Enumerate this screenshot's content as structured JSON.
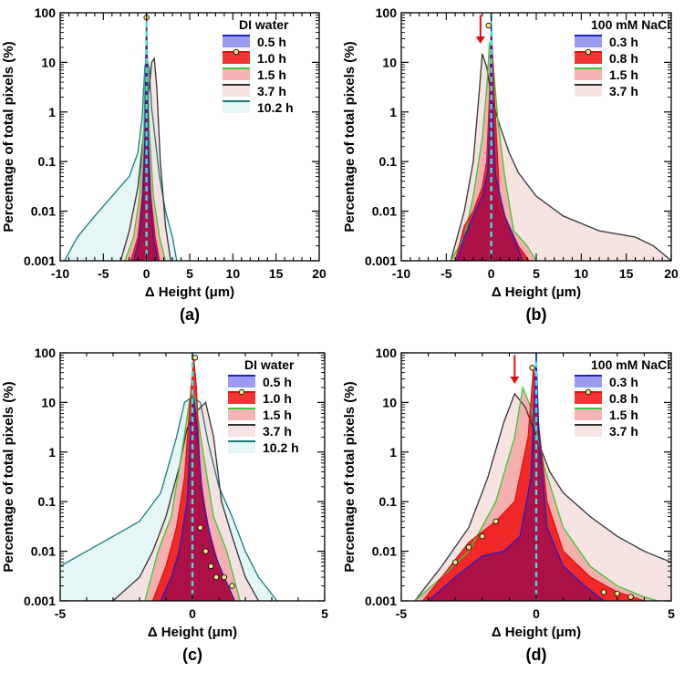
{
  "figure_colors": {
    "s_blue": "#2020c8",
    "s_blue_fill": "#8a8af0",
    "s_red": "#e01010",
    "s_red_fill": "#ee1111",
    "s_green": "#33cc33",
    "s_green_fill": "#f4a6a6",
    "s_black": "#333333",
    "s_black_fill": "#f7dede",
    "s_teal": "#1a7a7a",
    "s_teal_fill": "#dff4f4",
    "overlap_fill": "#a8104a",
    "zero_line": "#44dddd",
    "arrow": "#e01010"
  },
  "chart_data": [
    {
      "panel": "a",
      "type": "area",
      "panel_label": "(a)",
      "xlabel": "Δ Height (μm)",
      "ylabel": "Percentage of total pixels (%)",
      "xlim": [
        -10,
        20
      ],
      "xticks": [
        "-10",
        "-5",
        "0",
        "5",
        "10",
        "15",
        "20"
      ],
      "yscale": "log",
      "ylim": [
        0.001,
        100
      ],
      "yticks": [
        "0.001",
        "0.01",
        "0.1",
        "1",
        "10",
        "100"
      ],
      "legend_title": "DI water",
      "series": [
        {
          "name": "10.2 h",
          "key": "s_teal",
          "x": [
            -9.5,
            -8,
            -6,
            -4,
            -2,
            -1,
            -0.5,
            -0.2,
            0,
            0.3,
            0.6,
            1,
            1.5,
            2.2,
            3,
            3.5
          ],
          "y": [
            0.001,
            0.003,
            0.008,
            0.02,
            0.05,
            0.15,
            0.8,
            8,
            12,
            8,
            1.2,
            0.3,
            0.05,
            0.01,
            0.003,
            0.001
          ]
        },
        {
          "name": "3.7 h",
          "key": "s_black",
          "x": [
            -3,
            -2,
            -1,
            -0.5,
            0,
            0.3,
            0.6,
            0.9,
            1.2,
            1.6,
            2.2,
            2.8
          ],
          "y": [
            0.001,
            0.004,
            0.03,
            0.2,
            1.5,
            3,
            10,
            12,
            3,
            0.1,
            0.005,
            0.001
          ]
        },
        {
          "name": "1.5 h",
          "key": "s_green",
          "x": [
            -2.5,
            -1.5,
            -0.8,
            -0.3,
            0,
            0.3,
            0.8,
            1.5,
            2.2
          ],
          "y": [
            0.001,
            0.003,
            0.02,
            0.5,
            60,
            0.5,
            0.02,
            0.003,
            0.001
          ]
        },
        {
          "name": "1.0 h",
          "key": "s_red",
          "x": [
            -1.8,
            -1,
            -0.5,
            -0.2,
            0,
            0.2,
            0.5,
            1,
            1.5
          ],
          "y": [
            0.001,
            0.003,
            0.02,
            0.3,
            80,
            0.3,
            0.02,
            0.003,
            0.001
          ]
        },
        {
          "name": "0.5 h",
          "key": "s_blue",
          "x": [
            -1.5,
            -0.8,
            -0.4,
            -0.15,
            0,
            0.15,
            0.4,
            0.8,
            1.3
          ],
          "y": [
            0.001,
            0.003,
            0.02,
            0.4,
            50,
            0.4,
            0.02,
            0.003,
            0.001
          ]
        }
      ],
      "markers": [
        {
          "x": 0,
          "y": 80
        }
      ],
      "arrow": null
    },
    {
      "panel": "b",
      "type": "area",
      "panel_label": "(b)",
      "xlabel": "Δ Height (μm)",
      "ylabel": "Percentage of total pixels (%)",
      "xlim": [
        -10,
        20
      ],
      "xticks": [
        "-10",
        "-5",
        "0",
        "5",
        "10",
        "15",
        "20"
      ],
      "yscale": "log",
      "ylim": [
        0.001,
        100
      ],
      "yticks": [
        "0.001",
        "0.01",
        "0.1",
        "1",
        "10",
        "100"
      ],
      "legend_title": "100 mM NaCl",
      "series": [
        {
          "name": "3.7 h",
          "key": "s_black",
          "x": [
            -4.5,
            -3,
            -2,
            -1.3,
            -1,
            -0.5,
            0,
            1,
            2,
            3,
            5,
            8,
            12,
            16,
            18,
            19.5,
            20
          ],
          "y": [
            0.001,
            0.01,
            0.1,
            3,
            15,
            8,
            2,
            0.5,
            0.15,
            0.06,
            0.02,
            0.008,
            0.004,
            0.003,
            0.002,
            0.0012,
            0.001
          ]
        },
        {
          "name": "1.5 h",
          "key": "s_green",
          "x": [
            -4.5,
            -3,
            -2,
            -1,
            -0.5,
            -0.2,
            0.2,
            0.8,
            1.5,
            2.5,
            4,
            5
          ],
          "y": [
            0.001,
            0.003,
            0.02,
            0.3,
            3,
            25,
            10,
            0.5,
            0.05,
            0.004,
            0.002,
            0.001
          ]
        },
        {
          "name": "0.8 h",
          "key": "s_red",
          "x": [
            -4,
            -3,
            -2,
            -1,
            -0.5,
            -0.2,
            0,
            0.3,
            1,
            2,
            3,
            4.2
          ],
          "y": [
            0.001,
            0.005,
            0.01,
            0.03,
            0.1,
            2,
            55,
            3,
            0.01,
            0.005,
            0.002,
            0.001
          ]
        },
        {
          "name": "0.3 h",
          "key": "s_blue",
          "x": [
            -3.8,
            -3,
            -2,
            -1,
            -0.4,
            -0.1,
            0,
            0.1,
            0.5,
            1.5,
            2.5,
            3.5
          ],
          "y": [
            0.001,
            0.003,
            0.008,
            0.02,
            0.06,
            1,
            80,
            2,
            0.05,
            0.008,
            0.003,
            0.001
          ]
        }
      ],
      "markers": [
        {
          "x": -0.3,
          "y": 55
        }
      ],
      "arrow": {
        "x": -1.2,
        "y_top": 50,
        "y_bottom": 20
      }
    },
    {
      "panel": "c",
      "type": "area",
      "panel_label": "(c)",
      "xlabel": "Δ Height (μm)",
      "ylabel": "Percentage of total pixels (%)",
      "xlim": [
        -5,
        5
      ],
      "xticks": [
        "-5",
        "0",
        "5"
      ],
      "yscale": "log",
      "ylim": [
        0.001,
        100
      ],
      "yticks": [
        "0.001",
        "0.01",
        "0.1",
        "1",
        "10",
        "100"
      ],
      "legend_title": "DI water",
      "series": [
        {
          "name": "10.2 h",
          "key": "s_teal",
          "x": [
            -5,
            -4,
            -3,
            -2,
            -1.2,
            -0.6,
            -0.3,
            0,
            0.3,
            0.6,
            1,
            1.5,
            2,
            2.5,
            3.2
          ],
          "y": [
            0.005,
            0.01,
            0.02,
            0.04,
            0.15,
            2,
            10,
            13,
            10,
            1.5,
            0.2,
            0.05,
            0.01,
            0.003,
            0.001
          ]
        },
        {
          "name": "3.7 h",
          "key": "s_black",
          "x": [
            -5,
            -3,
            -2,
            -1.5,
            -1,
            -0.5,
            -0.2,
            0.2,
            0.5,
            0.8,
            1.1,
            1.5,
            2,
            2.5
          ],
          "y": [
            0.001,
            0.001,
            0.003,
            0.01,
            0.05,
            0.5,
            3,
            7,
            10,
            2,
            0.1,
            0.02,
            0.003,
            0.001
          ]
        },
        {
          "name": "1.5 h",
          "key": "s_green",
          "x": [
            -1.8,
            -1.3,
            -0.8,
            -0.4,
            -0.1,
            0,
            0.1,
            0.4,
            0.8,
            1.3,
            1.8
          ],
          "y": [
            0.001,
            0.01,
            0.05,
            1,
            12,
            15,
            12,
            1,
            0.05,
            0.01,
            0.001
          ]
        },
        {
          "name": "1.0 h",
          "key": "s_red",
          "x": [
            -1.5,
            -1,
            -0.6,
            -0.3,
            -0.05,
            0.05,
            0.15,
            0.3,
            0.6,
            1,
            1.5
          ],
          "y": [
            0.001,
            0.005,
            0.03,
            0.3,
            20,
            80,
            20,
            0.3,
            0.03,
            0.005,
            0.001
          ]
        },
        {
          "name": "0.5 h",
          "key": "s_blue",
          "x": [
            -1.2,
            -0.8,
            -0.5,
            -0.2,
            -0.05,
            0.05,
            0.15,
            0.4,
            0.8,
            1.2,
            1.6
          ],
          "y": [
            0.001,
            0.003,
            0.01,
            0.1,
            4,
            12,
            4,
            0.1,
            0.01,
            0.003,
            0.001
          ]
        }
      ],
      "markers": [
        {
          "x": 0.1,
          "y": 80
        },
        {
          "x": 0.3,
          "y": 0.03
        },
        {
          "x": 0.5,
          "y": 0.01
        },
        {
          "x": 0.7,
          "y": 0.005
        },
        {
          "x": 0.9,
          "y": 0.003
        },
        {
          "x": 1.2,
          "y": 0.003
        },
        {
          "x": 1.5,
          "y": 0.002
        }
      ],
      "arrow": null
    },
    {
      "panel": "d",
      "type": "area",
      "panel_label": "(d)",
      "xlabel": "Δ Height (μm)",
      "ylabel": "Percentage of total pixels (%)",
      "xlim": [
        -5,
        5
      ],
      "xticks": [
        "-5",
        "0",
        "5"
      ],
      "yscale": "log",
      "ylim": [
        0.001,
        100
      ],
      "yticks": [
        "0.001",
        "0.01",
        "0.1",
        "1",
        "10",
        "100"
      ],
      "legend_title": "100 mM NaCl",
      "series": [
        {
          "name": "3.7 h",
          "key": "s_black",
          "x": [
            -4.5,
            -3.5,
            -2.5,
            -1.8,
            -1.2,
            -0.8,
            -0.4,
            0,
            0.5,
            1,
            2,
            3,
            4,
            5
          ],
          "y": [
            0.001,
            0.005,
            0.03,
            0.3,
            4,
            15,
            8,
            2,
            0.4,
            0.15,
            0.05,
            0.02,
            0.01,
            0.006
          ]
        },
        {
          "name": "1.5 h",
          "key": "s_green",
          "x": [
            -4.5,
            -3.5,
            -2.5,
            -1.5,
            -0.8,
            -0.5,
            -0.2,
            0.3,
            1,
            2,
            3,
            4,
            4.5
          ],
          "y": [
            0.001,
            0.003,
            0.01,
            0.1,
            2,
            20,
            8,
            0.5,
            0.03,
            0.005,
            0.002,
            0.0012,
            0.001
          ]
        },
        {
          "name": "0.8 h",
          "key": "s_red",
          "x": [
            -4.2,
            -3.5,
            -2.5,
            -1.5,
            -0.8,
            -0.3,
            -0.1,
            0.1,
            0.4,
            1,
            2,
            3,
            4
          ],
          "y": [
            0.001,
            0.003,
            0.015,
            0.04,
            0.1,
            2,
            50,
            3,
            0.1,
            0.01,
            0.003,
            0.0015,
            0.001
          ]
        },
        {
          "name": "0.3 h",
          "key": "s_blue",
          "x": [
            -4,
            -3,
            -2,
            -1.2,
            -0.6,
            -0.2,
            0,
            0.1,
            0.4,
            1,
            1.8,
            2.5
          ],
          "y": [
            0.001,
            0.003,
            0.008,
            0.01,
            0.02,
            0.3,
            80,
            2,
            0.03,
            0.005,
            0.002,
            0.001
          ]
        }
      ],
      "markers": [
        {
          "x": -0.15,
          "y": 50
        },
        {
          "x": -3.0,
          "y": 0.006
        },
        {
          "x": -2.5,
          "y": 0.012
        },
        {
          "x": -2.0,
          "y": 0.02
        },
        {
          "x": -1.5,
          "y": 0.04
        },
        {
          "x": 2.5,
          "y": 0.0015
        },
        {
          "x": 3.0,
          "y": 0.0014
        },
        {
          "x": 3.5,
          "y": 0.0012
        }
      ],
      "arrow": {
        "x": -0.8,
        "y_top": 50,
        "y_bottom": 20
      }
    }
  ]
}
